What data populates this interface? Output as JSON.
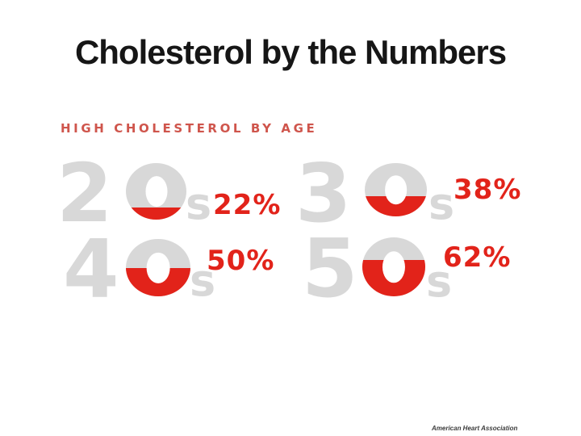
{
  "slide": {
    "title": "Cholesterol by the Numbers"
  },
  "infographic": {
    "heading": "HIGH CHOLESTEROL BY AGE",
    "groups": [
      {
        "age_range": "20s",
        "decade": "2",
        "suffix": "s",
        "percent": 22,
        "percent_label": "22%"
      },
      {
        "age_range": "30s",
        "decade": "3",
        "suffix": "s",
        "percent": 38,
        "percent_label": "38%"
      },
      {
        "age_range": "40s",
        "decade": "4",
        "suffix": "s",
        "percent": 50,
        "percent_label": "50%"
      },
      {
        "age_range": "50s",
        "decade": "5",
        "suffix": "s",
        "percent": 62,
        "percent_label": "62%"
      }
    ]
  },
  "footer": {
    "credit": "American Heart Association"
  },
  "colors": {
    "accent_red": "#e2231a",
    "heading_red": "#cf554c",
    "digit_gray": "#d8d8d8",
    "title_black": "#161616",
    "background": "#ffffff"
  },
  "chart_data": {
    "type": "bar",
    "subtype": "pictorial-donut-gauge",
    "title": "HIGH CHOLESTEROL BY AGE",
    "categories": [
      "20s",
      "30s",
      "40s",
      "50s"
    ],
    "values": [
      22,
      38,
      50,
      62
    ],
    "unit": "%",
    "value_labels": [
      "22%",
      "38%",
      "50%",
      "62%"
    ],
    "ylim": [
      0,
      100
    ],
    "legend": "none",
    "grid": false,
    "description": "The zero of each decade numeral is a donut gauge filled red from the bottom to the given percentage",
    "source": "American Heart Association"
  }
}
